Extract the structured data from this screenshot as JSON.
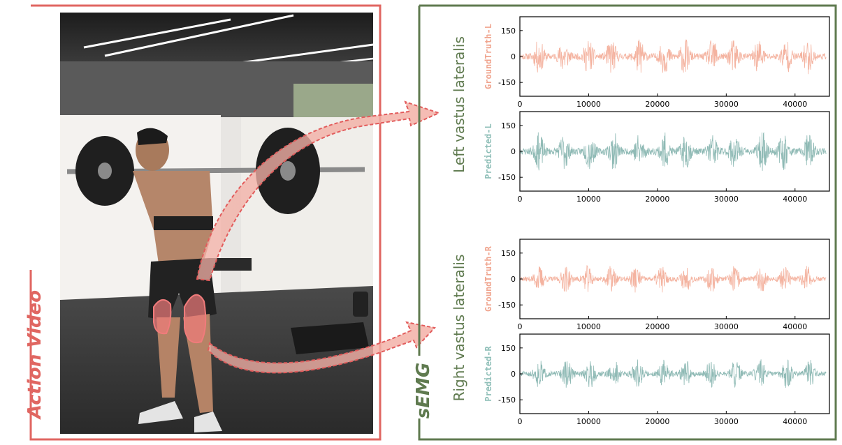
{
  "left_panel": {
    "title": "Action Video",
    "border_color": "#e06661",
    "title_color": "#e06661"
  },
  "right_panel": {
    "title": "sEMG",
    "border_color": "#5f7a4f",
    "title_color": "#5f7a4f"
  },
  "groups": [
    {
      "label": "Left vastus lateralis",
      "label_color": "#5f7a4f"
    },
    {
      "label": "Right vastus lateralis",
      "label_color": "#5f7a4f"
    }
  ],
  "plots": [
    {
      "label": "GroundTruth-L",
      "label_color": "#f0a58f",
      "signal_color": "#f4b3a0",
      "seed": 11,
      "amp": 1.0
    },
    {
      "label": "Predicted-L",
      "label_color": "#8fbfb8",
      "signal_color": "#8fbab5",
      "seed": 23,
      "amp": 1.05
    },
    {
      "label": "GroundTruth-R",
      "label_color": "#f0a58f",
      "signal_color": "#f4b3a0",
      "seed": 37,
      "amp": 0.75
    },
    {
      "label": "Predicted-R",
      "label_color": "#8fbfb8",
      "signal_color": "#8fbab5",
      "seed": 51,
      "amp": 0.8
    }
  ],
  "axes": {
    "x_ticks": [
      0,
      10000,
      20000,
      30000,
      40000
    ],
    "x_tick_labels": [
      "0",
      "10000",
      "20000",
      "30000",
      "40000"
    ],
    "x_range": [
      0,
      45000
    ],
    "y_ticks": [
      150,
      0,
      -150
    ],
    "y_tick_labels": [
      "150",
      "0",
      "-150"
    ],
    "y_range": [
      -230,
      230
    ]
  },
  "photo": {
    "description_icon": "person-squat-photo-icon",
    "muscle_highlight_color": "#f07b7b",
    "arrow_color": "#e25c5c"
  }
}
